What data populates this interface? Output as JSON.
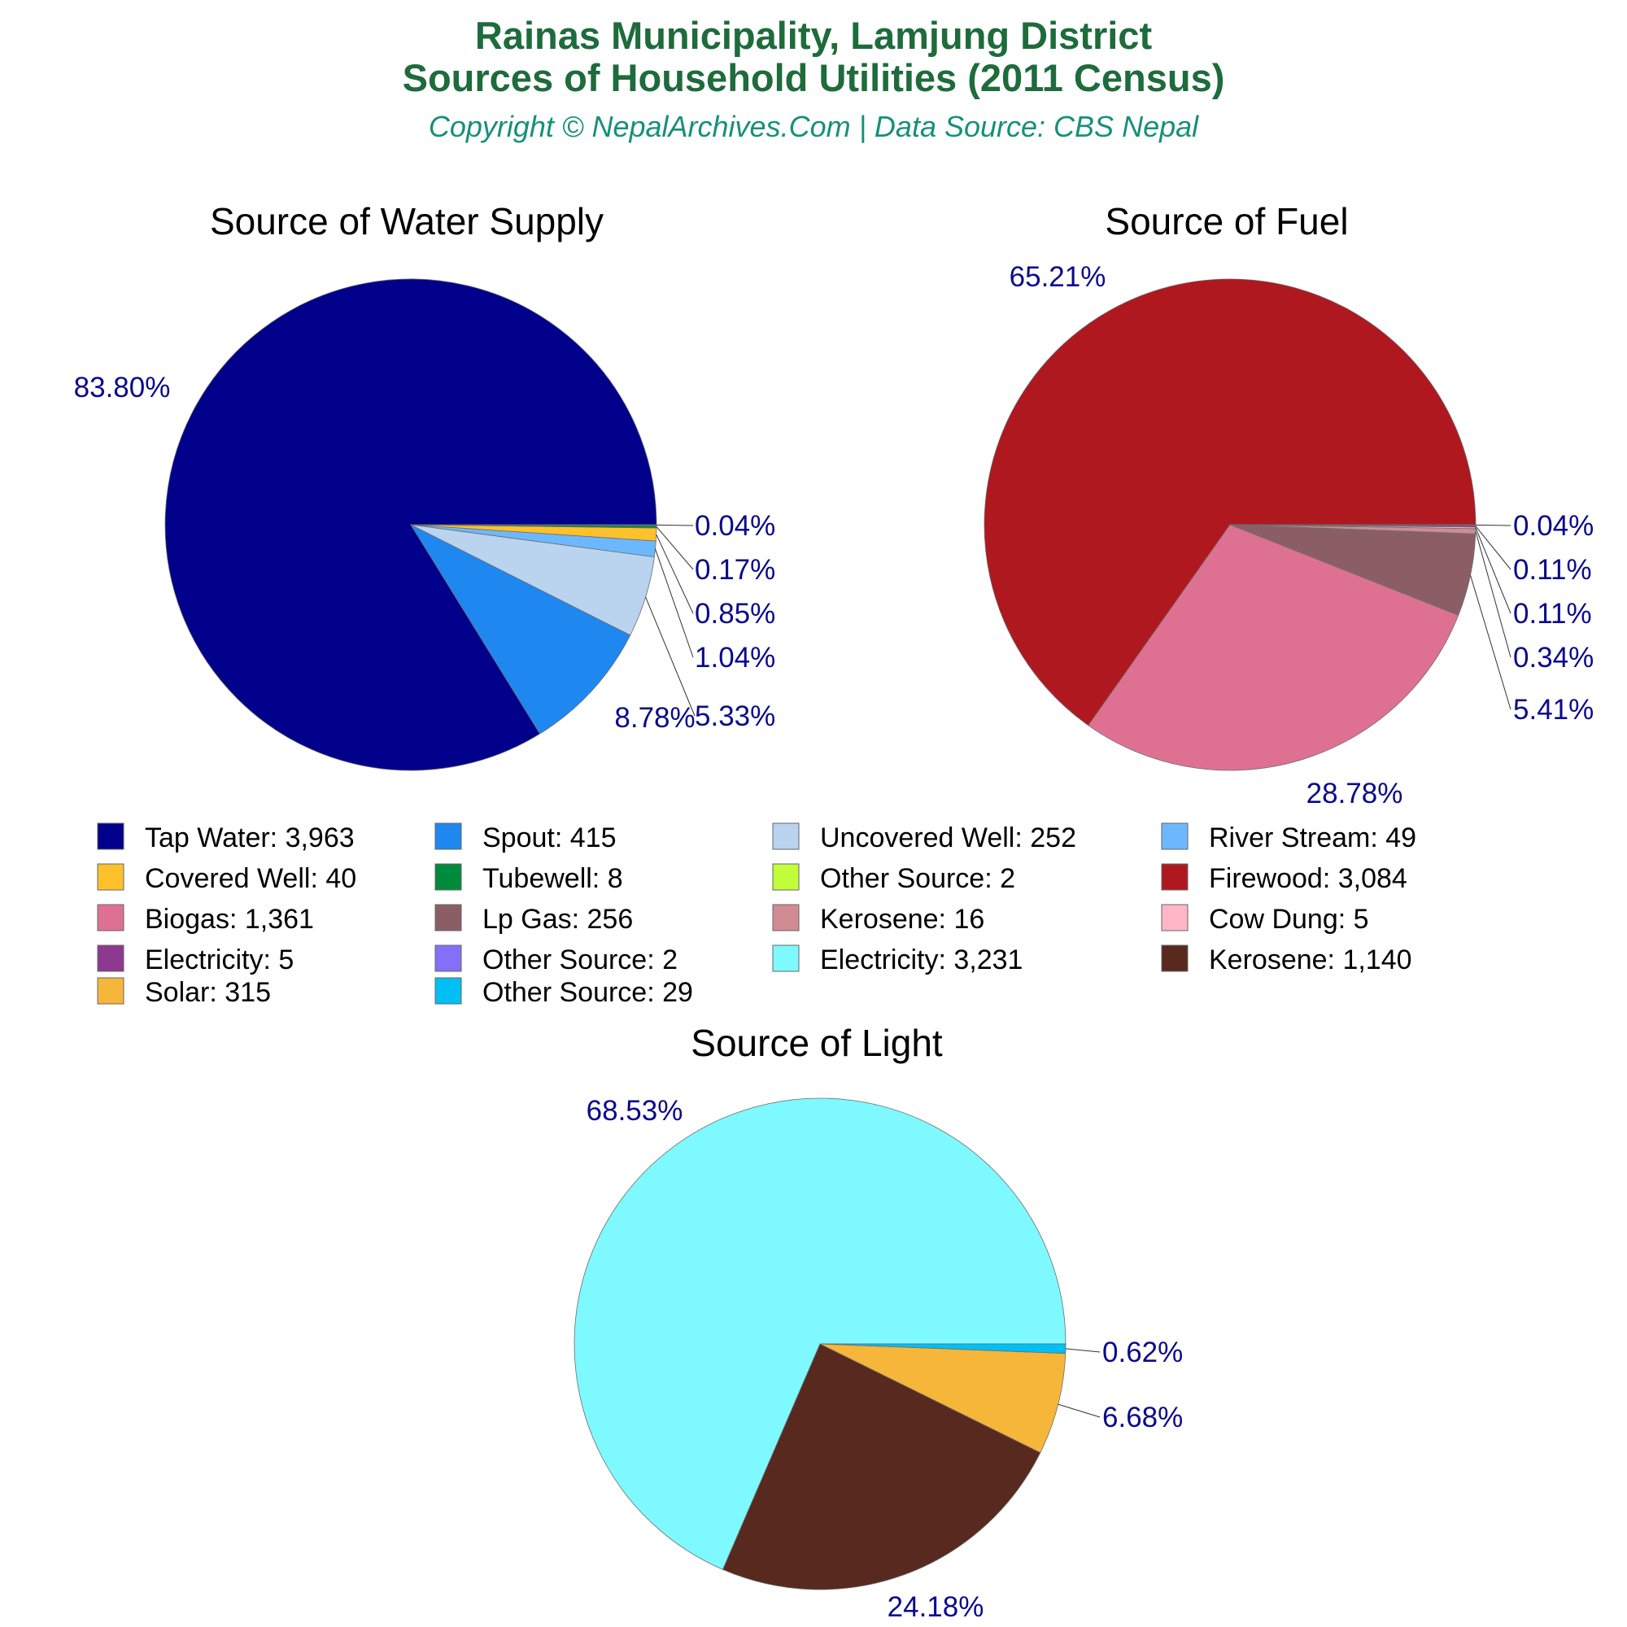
{
  "header": {
    "title_line1": "Rainas Municipality, Lamjung District",
    "title_line2": "Sources of Household Utilities (2011 Census)",
    "subtitle": "Copyright © NepalArchives.Com | Data Source: CBS Nepal"
  },
  "chart_data": [
    {
      "type": "pie",
      "title": "Source of Water Supply",
      "labels": [
        "Tap Water",
        "Spout",
        "Uncovered Well",
        "River Stream",
        "Covered Well",
        "Tubewell",
        "Other Source"
      ],
      "values": [
        3963,
        415,
        252,
        49,
        40,
        8,
        2
      ],
      "percent_labels": [
        "83.80%",
        "8.78%",
        "5.33%",
        "1.04%",
        "0.85%",
        "0.17%",
        "0.04%"
      ],
      "colors": [
        "#00008b",
        "#1e88f0",
        "#bad3ef",
        "#6cb8ff",
        "#ffc12b",
        "#008a3c",
        "#c2ff3a"
      ]
    },
    {
      "type": "pie",
      "title": "Source of Fuel",
      "labels": [
        "Firewood",
        "Biogas",
        "Lp Gas",
        "Kerosene",
        "Cow Dung",
        "Electricity",
        "Other Source"
      ],
      "values": [
        3084,
        1361,
        256,
        16,
        5,
        5,
        2
      ],
      "percent_labels": [
        "65.21%",
        "28.78%",
        "5.41%",
        "0.34%",
        "0.11%",
        "0.11%",
        "0.04%"
      ],
      "colors": [
        "#b01820",
        "#de7192",
        "#8b5e66",
        "#d08b93",
        "#ffb6c5",
        "#8d3990",
        "#8470f8"
      ]
    },
    {
      "type": "pie",
      "title": "Source of Light",
      "labels": [
        "Electricity",
        "Kerosene",
        "Solar",
        "Other Source"
      ],
      "values": [
        3231,
        1140,
        315,
        29
      ],
      "percent_labels": [
        "68.53%",
        "24.18%",
        "6.68%",
        "0.62%"
      ],
      "colors": [
        "#7ef9ff",
        "#58291f",
        "#f6b63a",
        "#00bff5"
      ]
    }
  ],
  "legend": [
    {
      "label": "Tap Water: 3,963",
      "color": "#00008b"
    },
    {
      "label": "Spout: 415",
      "color": "#1e88f0"
    },
    {
      "label": "Uncovered Well: 252",
      "color": "#bad3ef"
    },
    {
      "label": "River Stream: 49",
      "color": "#6cb8ff"
    },
    {
      "label": "Covered Well: 40",
      "color": "#ffc12b"
    },
    {
      "label": "Tubewell: 8",
      "color": "#008a3c"
    },
    {
      "label": "Other Source: 2",
      "color": "#c2ff3a"
    },
    {
      "label": "Firewood: 3,084",
      "color": "#b01820"
    },
    {
      "label": "Biogas: 1,361",
      "color": "#de7192"
    },
    {
      "label": "Lp Gas: 256",
      "color": "#8b5e66"
    },
    {
      "label": "Kerosene: 16",
      "color": "#d08b93"
    },
    {
      "label": "Cow Dung: 5",
      "color": "#ffb6c5"
    },
    {
      "label": "Electricity: 5",
      "color": "#8d3990"
    },
    {
      "label": "Other Source: 2",
      "color": "#8470f8"
    },
    {
      "label": "Electricity: 3,231",
      "color": "#7ef9ff"
    },
    {
      "label": "Kerosene: 1,140",
      "color": "#58291f"
    },
    {
      "label": "Solar: 315",
      "color": "#f6b63a"
    },
    {
      "label": "Other Source: 29",
      "color": "#00bff5"
    }
  ]
}
